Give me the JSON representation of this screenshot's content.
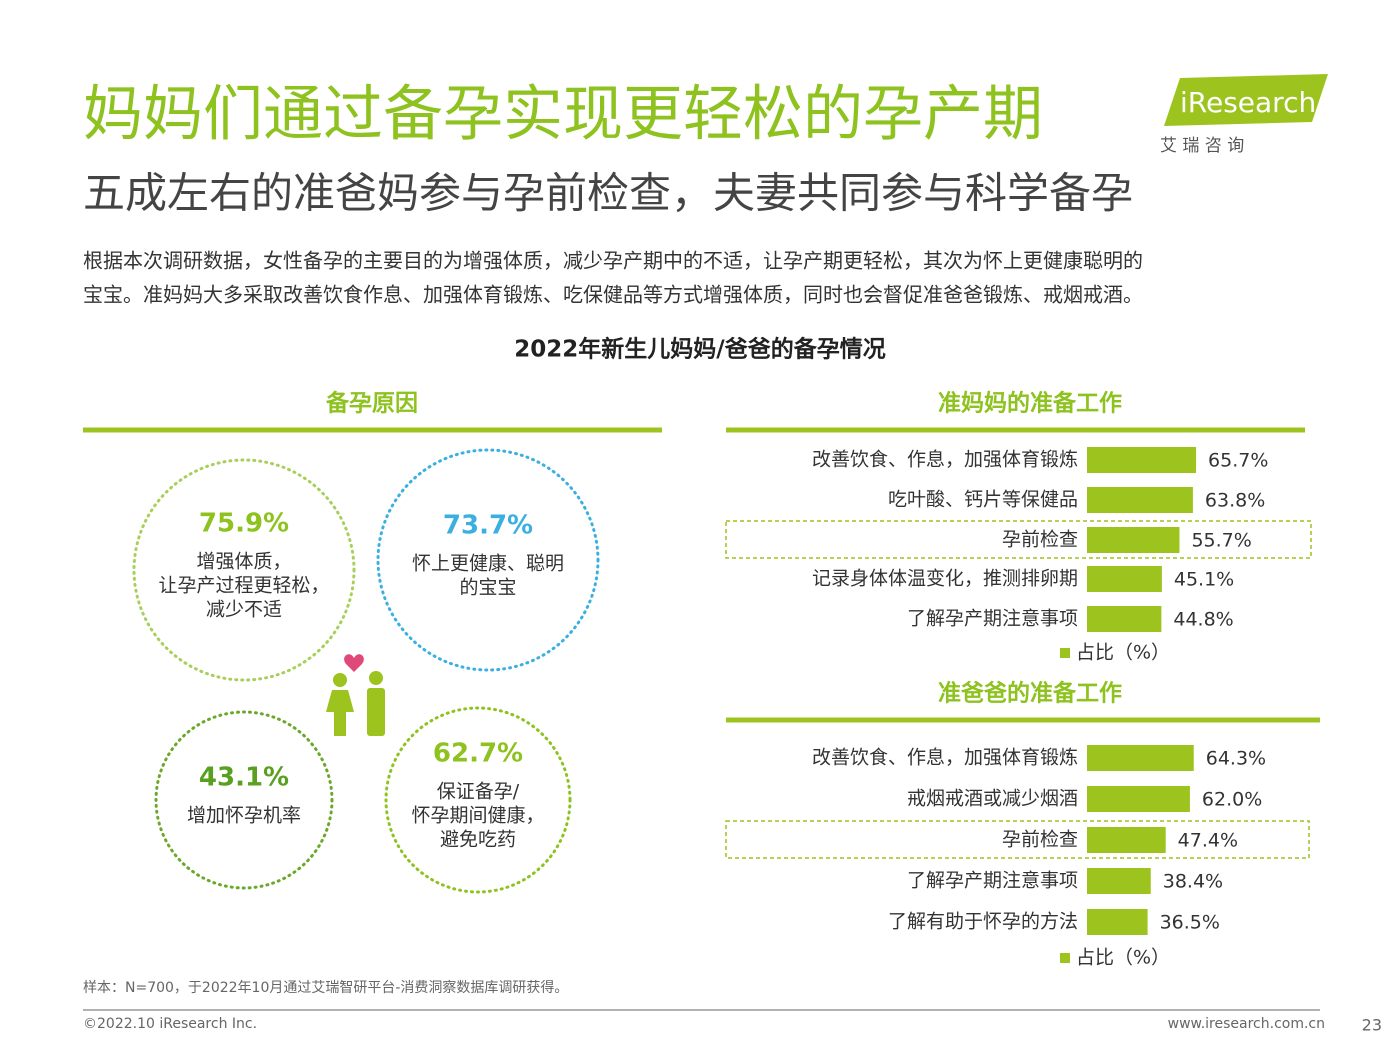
{
  "header": {
    "title": "妈妈们通过备孕实现更轻松的孕产期",
    "subtitle": "五成左右的准爸妈参与孕前检查，夫妻共同参与科学备孕",
    "logo": "iResearch",
    "logo_cn": "艾 瑞 咨 询"
  },
  "intro": [
    "根据本次调研数据，女性备孕的主要目的为增强体质，减少孕产期中的不适，让孕产期更轻松，其次为怀上更健康聪明的",
    "宝宝。准妈妈大多采取改善饮食作息、加强体育锻炼、吃保健品等方式增强体质，同时也会督促准爸爸锻炼、戒烟戒酒。"
  ],
  "figure_title": "2022年新生儿妈妈/爸爸的备孕情况",
  "reasons": {
    "title": "备孕原因",
    "items": [
      {
        "value": "75.9%",
        "lines": [
          "增强体质，",
          "让孕产过程更轻松，",
          "减少不适"
        ]
      },
      {
        "value": "73.7%",
        "lines": [
          "怀上更健康、聪明",
          "的宝宝"
        ]
      },
      {
        "value": "43.1%",
        "lines": [
          "增加怀孕机率"
        ]
      },
      {
        "value": "62.7%",
        "lines": [
          "保证备孕/",
          "怀孕期间健康，",
          "避免吃药"
        ]
      }
    ]
  },
  "chart_data": [
    {
      "type": "hbar",
      "title": "准妈妈的准备工作",
      "categories": [
        "改善饮食、作息，加强体育锻炼",
        "吃叶酸、钙片等保健品",
        "孕前检查",
        "记录身体体温变化，推测排卵期",
        "了解孕产期注意事项"
      ],
      "series": [
        {
          "name": "占比（%）",
          "color": "#9dc41e",
          "values": [
            65.7,
            63.8,
            55.7,
            45.1,
            44.8
          ],
          "value_labels": [
            "65.7%",
            "63.8%",
            "55.7%",
            "45.1%",
            "44.8%"
          ]
        }
      ],
      "xlim": [
        0,
        100
      ],
      "highlight": [
        2
      ]
    },
    {
      "type": "hbar",
      "title": "准爸爸的准备工作",
      "categories": [
        "改善饮食、作息，加强体育锻炼",
        "戒烟戒酒或减少烟酒",
        "孕前检查",
        "了解孕产期注意事项",
        "了解有助于怀孕的方法"
      ],
      "series": [
        {
          "name": "占比（%）",
          "color": "#9dc41e",
          "values": [
            64.3,
            62.0,
            47.4,
            38.4,
            36.5
          ],
          "value_labels": [
            "64.3%",
            "62.0%",
            "47.4%",
            "38.4%",
            "36.5%"
          ]
        }
      ],
      "xlim": [
        0,
        100
      ],
      "highlight": [
        2
      ]
    }
  ],
  "footer": {
    "note": "样本：N=700，于2022年10月通过艾瑞智研平台-消费洞察数据库调研获得。",
    "copyright": "©2022.10 iResearch Inc.",
    "url": "www.iresearch.com.cn",
    "page": "23"
  }
}
